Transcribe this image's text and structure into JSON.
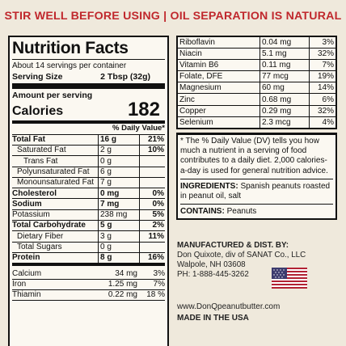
{
  "banner": "STIR WELL BEFORE USING | OIL SEPARATION IS NATURAL",
  "facts": {
    "title": "Nutrition Facts",
    "servings": "About 14 servings per container",
    "serving_size_label": "Serving Size",
    "serving_size_value": "2 Tbsp  (32g)",
    "amount_per_serving": "Amount per serving",
    "calories_label": "Calories",
    "calories_value": "182",
    "dv_header": "% Daily Value*",
    "rows": [
      {
        "name": "Total Fat",
        "amt": "16 g",
        "pct": "21%"
      },
      {
        "name": "Saturated Fat",
        "amt": "2 g",
        "pct": "10%"
      },
      {
        "name": "Trans Fat",
        "amt": "0 g",
        "pct": ""
      },
      {
        "name": "Polyunsaturated Fat",
        "amt": "6 g",
        "pct": ""
      },
      {
        "name": "Monounsaturated Fat",
        "amt": "7 g",
        "pct": ""
      },
      {
        "name": "Cholesterol",
        "amt": "0 mg",
        "pct": "0%"
      },
      {
        "name": "Sodium",
        "amt": "7 mg",
        "pct": "0%"
      },
      {
        "name": "Potassium",
        "amt": "238 mg",
        "pct": "5%"
      },
      {
        "name": "Total Carbohydrate",
        "amt": "5 g",
        "pct": "2%"
      },
      {
        "name": "Dietary Fiber",
        "amt": "3 g",
        "pct": "11%"
      },
      {
        "name": "Total Sugars",
        "amt": "0 g",
        "pct": ""
      },
      {
        "name": "Protein",
        "amt": "8 g",
        "pct": "16%"
      }
    ],
    "minerals": [
      {
        "name": "Calcium",
        "amt": "34 mg",
        "pct": "3%"
      },
      {
        "name": "Iron",
        "amt": "1.25 mg",
        "pct": "7%"
      },
      {
        "name": "Thiamin",
        "amt": "0.22 mg",
        "pct": "18 %"
      }
    ]
  },
  "vitamins": [
    {
      "name": "Riboflavin",
      "amt": "0.04 mg",
      "pct": "3%"
    },
    {
      "name": "Niacin",
      "amt": "5.1 mg",
      "pct": "32%"
    },
    {
      "name": "Vitamin B6",
      "amt": "0.11 mg",
      "pct": "7%"
    },
    {
      "name": "Folate, DFE",
      "amt": "77 mcg",
      "pct": "19%"
    },
    {
      "name": "Magnesium",
      "amt": "60 mg",
      "pct": "14%"
    },
    {
      "name": "Zinc",
      "amt": "0.68 mg",
      "pct": "6%"
    },
    {
      "name": "Copper",
      "amt": "0.29 mg",
      "pct": "32%"
    },
    {
      "name": "Selenium",
      "amt": "2.3 mcg",
      "pct": "4%"
    }
  ],
  "footnote": "* The % Daily Value (DV) tells you how much a nutrient in a serving of food contributes to a daily diet. 2,000 calories-a-day is used for general nutrition advice.",
  "ingredients_label": "INGREDIENTS:",
  "ingredients_text": "Spanish peanuts roasted in peanut oil, salt",
  "contains_label": "CONTAINS:",
  "contains_text": "Peanuts",
  "manufacturer": {
    "head": "MANUFACTURED & DIST. BY:",
    "line1": "Don Quixote, div of SANAT Co., LLC",
    "line2": "Walpole, NH 03608",
    "line3": "PH: 1-888-445-3262"
  },
  "website": "www.DonQpeanutbutter.com",
  "made_in": "MADE IN THE USA",
  "colors": {
    "banner": "#c0282d",
    "flag_red": "#b22234",
    "flag_blue": "#3c3b6e"
  }
}
